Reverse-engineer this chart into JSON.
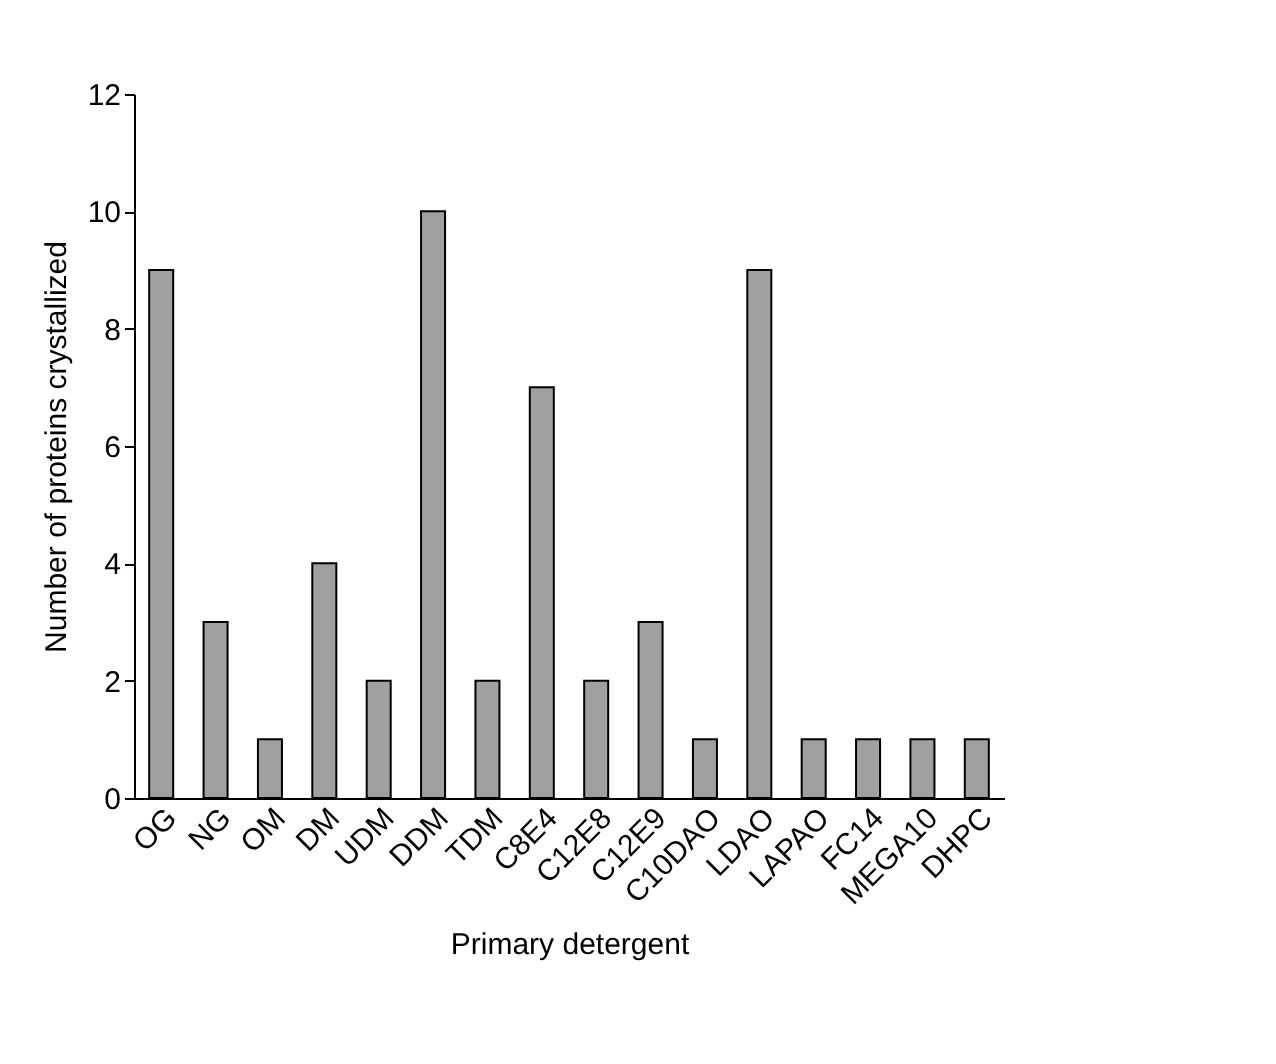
{
  "chart_data": {
    "type": "bar",
    "xlabel": "Primary detergent",
    "ylabel": "Number of proteins crystallized",
    "categories": [
      "OG",
      "NG",
      "OM",
      "DM",
      "UDM",
      "DDM",
      "TDM",
      "C8E4",
      "C12E8",
      "C12E9",
      "C10DAO",
      "LDAO",
      "LAPAO",
      "FC14",
      "MEGA10",
      "DHPC"
    ],
    "values": [
      9,
      3,
      1,
      4,
      2,
      10,
      2,
      7,
      2,
      3,
      1,
      9,
      1,
      1,
      1,
      1
    ],
    "color": "#a0a0a0",
    "ylim": [
      0,
      12
    ],
    "yticks": [
      0,
      2,
      4,
      6,
      8,
      10,
      12
    ],
    "grid": false
  }
}
